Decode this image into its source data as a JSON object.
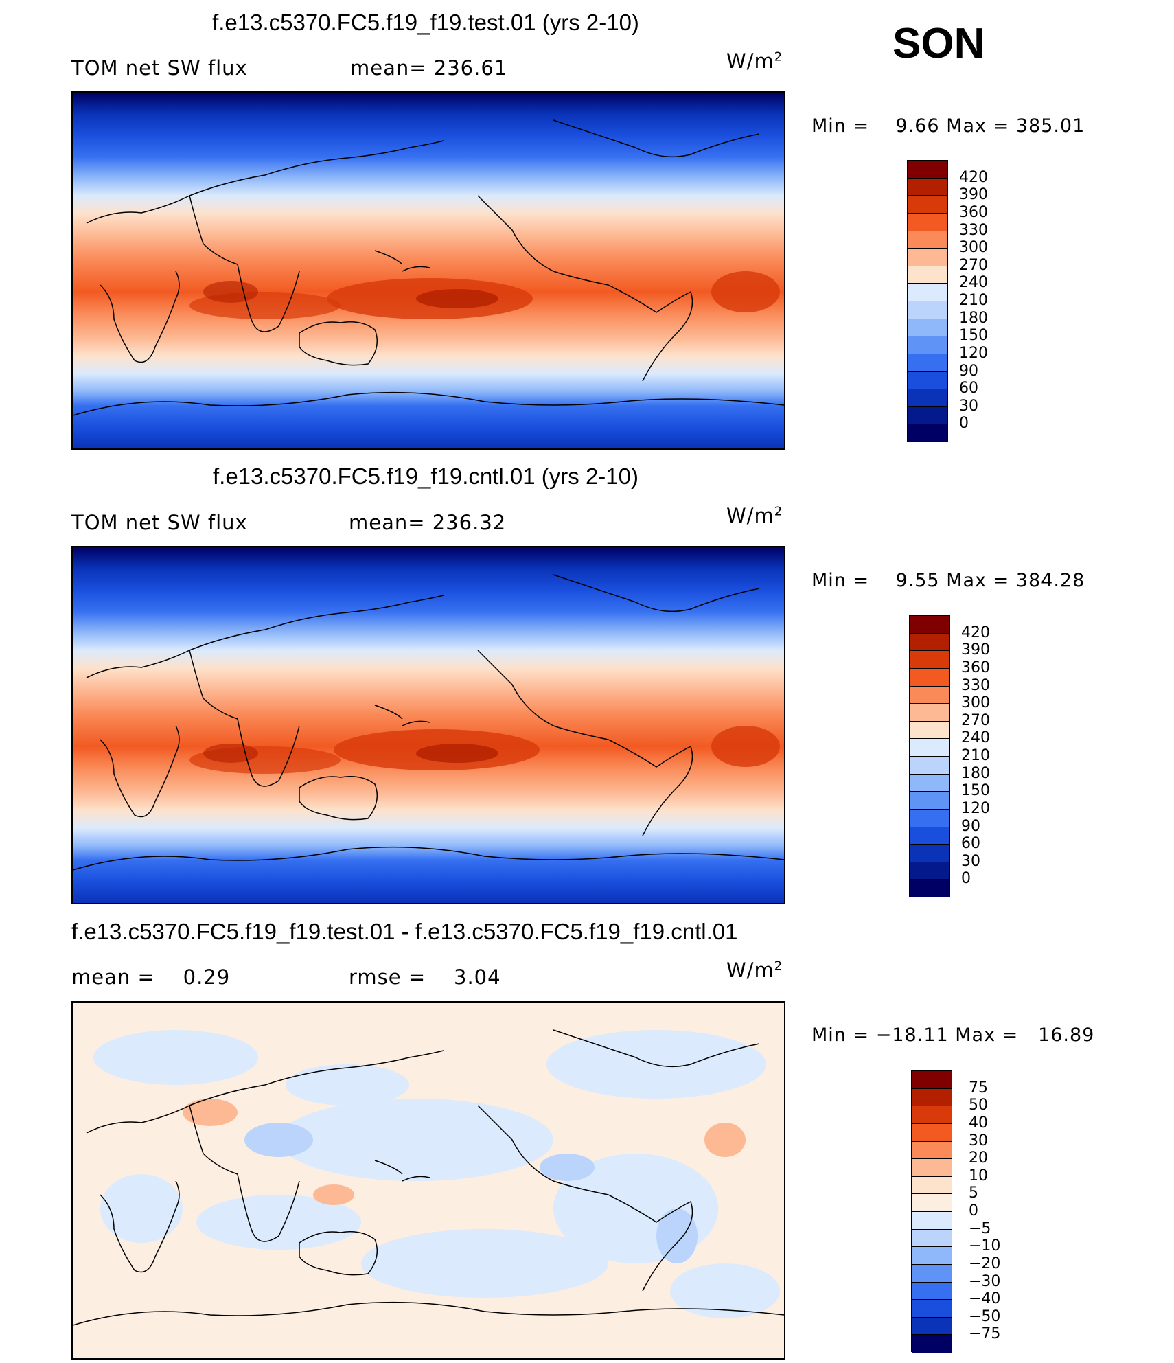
{
  "season": "SON",
  "units": {
    "base": "W/m",
    "exp": "2"
  },
  "panels": [
    {
      "title": "f.e13.c5370.FC5.f19_f19.test.01 (yrs 2-10)",
      "variable": "TOM net SW flux",
      "mean_label": "mean=",
      "mean_value": "236.61",
      "min_label": "Min =",
      "min_value": "9.66",
      "max_label": "Max =",
      "max_value": "385.01"
    },
    {
      "title": "f.e13.c5370.FC5.f19_f19.cntl.01 (yrs 2-10)",
      "variable": "TOM net SW flux",
      "mean_label": "mean=",
      "mean_value": "236.32",
      "min_label": "Min =",
      "min_value": "9.55",
      "max_label": "Max =",
      "max_value": "384.28"
    },
    {
      "title": "f.e13.c5370.FC5.f19_f19.test.01 - f.e13.c5370.FC5.f19_f19.cntl.01",
      "mean_label": "mean =",
      "mean_value": "0.29",
      "rmse_label": "rmse =",
      "rmse_value": "3.04",
      "min_label": "Min =",
      "min_value": "−18.11",
      "max_label": "Max =",
      "max_value": "16.89"
    }
  ],
  "colorbar_abs": {
    "levels": [
      "420",
      "390",
      "360",
      "330",
      "300",
      "270",
      "240",
      "210",
      "180",
      "150",
      "120",
      "90",
      "60",
      "30",
      "0"
    ],
    "colors": [
      "#800000",
      "#b22000",
      "#d83a0a",
      "#f25a22",
      "#fa8a58",
      "#fdb994",
      "#fde2cc",
      "#dbeafc",
      "#bad4fb",
      "#8fb8fa",
      "#5f93f5",
      "#3670f0",
      "#1a4fde",
      "#0a33b8",
      "#041a8c",
      "#000064"
    ]
  },
  "colorbar_diff": {
    "levels": [
      "75",
      "50",
      "40",
      "30",
      "20",
      "10",
      "5",
      "0",
      "−5",
      "−10",
      "−20",
      "−30",
      "−40",
      "−50",
      "−75"
    ],
    "colors": [
      "#800000",
      "#b22000",
      "#d83a0a",
      "#f25a22",
      "#fa8a58",
      "#fdb994",
      "#fde2cc",
      "#fdeee2",
      "#dbeafc",
      "#bad4fb",
      "#8fb8fa",
      "#5f93f5",
      "#3670f0",
      "#1a4fde",
      "#0a33b8",
      "#000064"
    ]
  }
}
